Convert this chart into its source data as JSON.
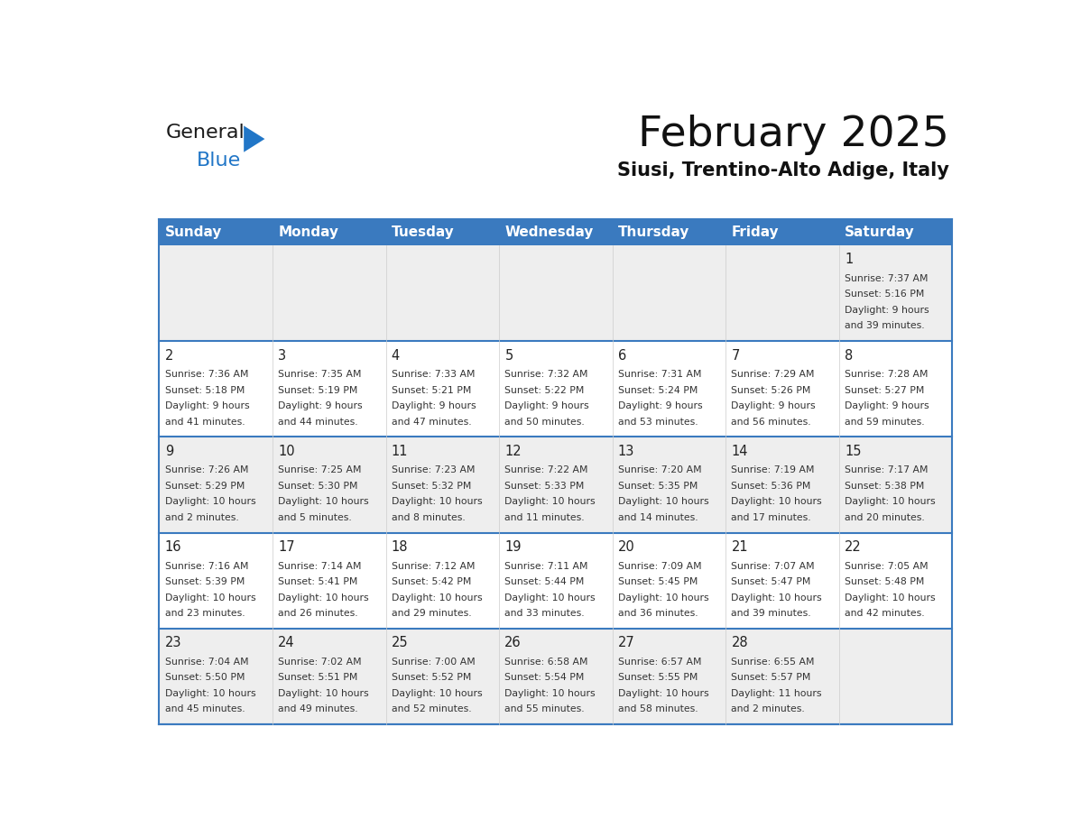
{
  "title": "February 2025",
  "subtitle": "Siusi, Trentino-Alto Adige, Italy",
  "header_color": "#3a7abf",
  "header_text_color": "#ffffff",
  "cell_bg_row0": "#eeeeee",
  "cell_bg_row1": "#ffffff",
  "cell_bg_row2": "#eeeeee",
  "cell_bg_row3": "#ffffff",
  "cell_bg_row4": "#eeeeee",
  "border_color": "#3a7abf",
  "day_names": [
    "Sunday",
    "Monday",
    "Tuesday",
    "Wednesday",
    "Thursday",
    "Friday",
    "Saturday"
  ],
  "days": [
    {
      "day": 1,
      "col": 6,
      "row": 0,
      "sunrise": "7:37 AM",
      "sunset": "5:16 PM",
      "dl_hours": "9",
      "dl_mins": "39"
    },
    {
      "day": 2,
      "col": 0,
      "row": 1,
      "sunrise": "7:36 AM",
      "sunset": "5:18 PM",
      "dl_hours": "9",
      "dl_mins": "41"
    },
    {
      "day": 3,
      "col": 1,
      "row": 1,
      "sunrise": "7:35 AM",
      "sunset": "5:19 PM",
      "dl_hours": "9",
      "dl_mins": "44"
    },
    {
      "day": 4,
      "col": 2,
      "row": 1,
      "sunrise": "7:33 AM",
      "sunset": "5:21 PM",
      "dl_hours": "9",
      "dl_mins": "47"
    },
    {
      "day": 5,
      "col": 3,
      "row": 1,
      "sunrise": "7:32 AM",
      "sunset": "5:22 PM",
      "dl_hours": "9",
      "dl_mins": "50"
    },
    {
      "day": 6,
      "col": 4,
      "row": 1,
      "sunrise": "7:31 AM",
      "sunset": "5:24 PM",
      "dl_hours": "9",
      "dl_mins": "53"
    },
    {
      "day": 7,
      "col": 5,
      "row": 1,
      "sunrise": "7:29 AM",
      "sunset": "5:26 PM",
      "dl_hours": "9",
      "dl_mins": "56"
    },
    {
      "day": 8,
      "col": 6,
      "row": 1,
      "sunrise": "7:28 AM",
      "sunset": "5:27 PM",
      "dl_hours": "9",
      "dl_mins": "59"
    },
    {
      "day": 9,
      "col": 0,
      "row": 2,
      "sunrise": "7:26 AM",
      "sunset": "5:29 PM",
      "dl_hours": "10",
      "dl_mins": "2"
    },
    {
      "day": 10,
      "col": 1,
      "row": 2,
      "sunrise": "7:25 AM",
      "sunset": "5:30 PM",
      "dl_hours": "10",
      "dl_mins": "5"
    },
    {
      "day": 11,
      "col": 2,
      "row": 2,
      "sunrise": "7:23 AM",
      "sunset": "5:32 PM",
      "dl_hours": "10",
      "dl_mins": "8"
    },
    {
      "day": 12,
      "col": 3,
      "row": 2,
      "sunrise": "7:22 AM",
      "sunset": "5:33 PM",
      "dl_hours": "10",
      "dl_mins": "11"
    },
    {
      "day": 13,
      "col": 4,
      "row": 2,
      "sunrise": "7:20 AM",
      "sunset": "5:35 PM",
      "dl_hours": "10",
      "dl_mins": "14"
    },
    {
      "day": 14,
      "col": 5,
      "row": 2,
      "sunrise": "7:19 AM",
      "sunset": "5:36 PM",
      "dl_hours": "10",
      "dl_mins": "17"
    },
    {
      "day": 15,
      "col": 6,
      "row": 2,
      "sunrise": "7:17 AM",
      "sunset": "5:38 PM",
      "dl_hours": "10",
      "dl_mins": "20"
    },
    {
      "day": 16,
      "col": 0,
      "row": 3,
      "sunrise": "7:16 AM",
      "sunset": "5:39 PM",
      "dl_hours": "10",
      "dl_mins": "23"
    },
    {
      "day": 17,
      "col": 1,
      "row": 3,
      "sunrise": "7:14 AM",
      "sunset": "5:41 PM",
      "dl_hours": "10",
      "dl_mins": "26"
    },
    {
      "day": 18,
      "col": 2,
      "row": 3,
      "sunrise": "7:12 AM",
      "sunset": "5:42 PM",
      "dl_hours": "10",
      "dl_mins": "29"
    },
    {
      "day": 19,
      "col": 3,
      "row": 3,
      "sunrise": "7:11 AM",
      "sunset": "5:44 PM",
      "dl_hours": "10",
      "dl_mins": "33"
    },
    {
      "day": 20,
      "col": 4,
      "row": 3,
      "sunrise": "7:09 AM",
      "sunset": "5:45 PM",
      "dl_hours": "10",
      "dl_mins": "36"
    },
    {
      "day": 21,
      "col": 5,
      "row": 3,
      "sunrise": "7:07 AM",
      "sunset": "5:47 PM",
      "dl_hours": "10",
      "dl_mins": "39"
    },
    {
      "day": 22,
      "col": 6,
      "row": 3,
      "sunrise": "7:05 AM",
      "sunset": "5:48 PM",
      "dl_hours": "10",
      "dl_mins": "42"
    },
    {
      "day": 23,
      "col": 0,
      "row": 4,
      "sunrise": "7:04 AM",
      "sunset": "5:50 PM",
      "dl_hours": "10",
      "dl_mins": "45"
    },
    {
      "day": 24,
      "col": 1,
      "row": 4,
      "sunrise": "7:02 AM",
      "sunset": "5:51 PM",
      "dl_hours": "10",
      "dl_mins": "49"
    },
    {
      "day": 25,
      "col": 2,
      "row": 4,
      "sunrise": "7:00 AM",
      "sunset": "5:52 PM",
      "dl_hours": "10",
      "dl_mins": "52"
    },
    {
      "day": 26,
      "col": 3,
      "row": 4,
      "sunrise": "6:58 AM",
      "sunset": "5:54 PM",
      "dl_hours": "10",
      "dl_mins": "55"
    },
    {
      "day": 27,
      "col": 4,
      "row": 4,
      "sunrise": "6:57 AM",
      "sunset": "5:55 PM",
      "dl_hours": "10",
      "dl_mins": "58"
    },
    {
      "day": 28,
      "col": 5,
      "row": 4,
      "sunrise": "6:55 AM",
      "sunset": "5:57 PM",
      "dl_hours": "11",
      "dl_mins": "2"
    }
  ],
  "num_rows": 5,
  "num_cols": 7,
  "logo_text_general": "General",
  "logo_text_blue": "Blue",
  "logo_color_general": "#1a1a1a",
  "logo_color_blue": "#2176c7",
  "logo_triangle_color": "#2176c7"
}
